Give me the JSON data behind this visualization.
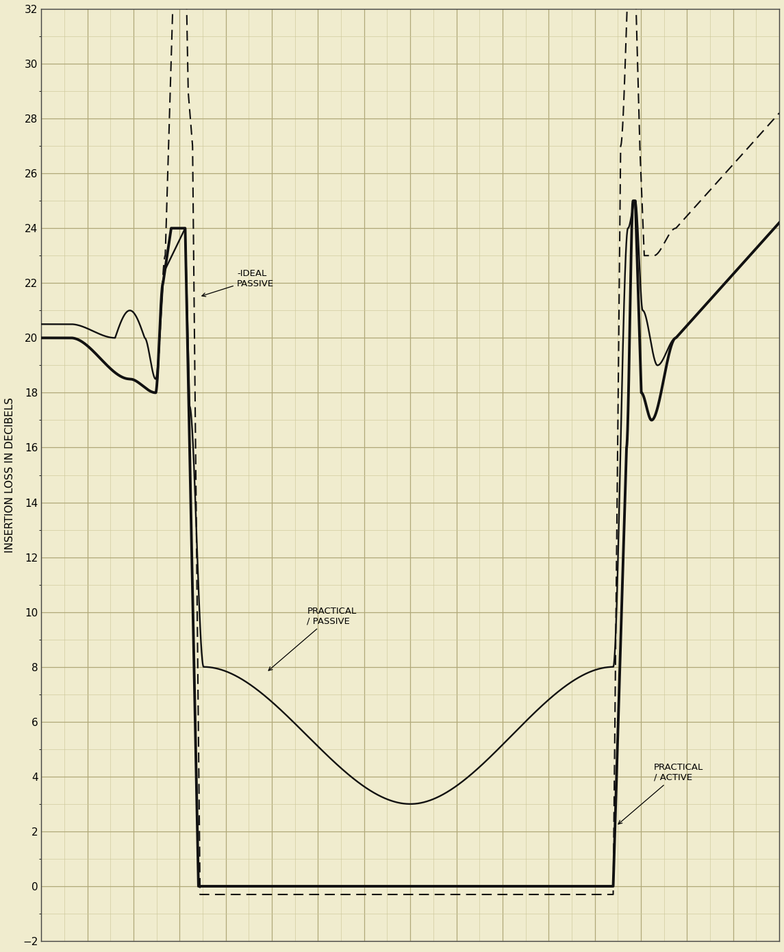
{
  "ylabel": "INSERTION LOSS IN DECIBELS",
  "ylim": [
    -2,
    32
  ],
  "yticks": [
    -2,
    0,
    2,
    4,
    6,
    8,
    10,
    12,
    14,
    16,
    18,
    20,
    22,
    24,
    26,
    28,
    30,
    32
  ],
  "background_color": "#f0ecce",
  "grid_major_color": "#b0a878",
  "grid_minor_color": "#cdc89a",
  "line_color": "#111111",
  "figsize": [
    11.45,
    13.9
  ],
  "dpi": 100,
  "annotation_ideal": "-IDEAL\nPASSIVE",
  "annotation_pp": "PRACTICAL\n/ PASSIVE",
  "annotation_pa": "PRACTICAL\n/ ACTIVE"
}
